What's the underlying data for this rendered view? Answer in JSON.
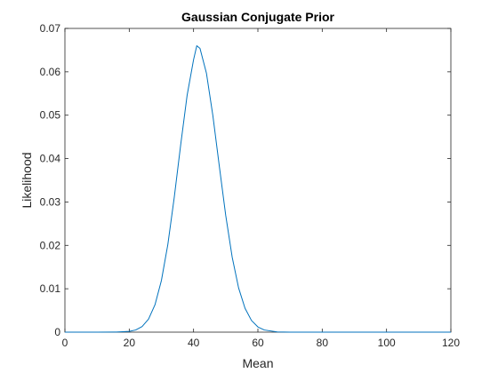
{
  "chart_data": {
    "type": "line",
    "title": "Gaussian Conjugate Prior",
    "xlabel": "Mean",
    "ylabel": "Likelihood",
    "xlim": [
      0,
      120
    ],
    "ylim": [
      0,
      0.07
    ],
    "xticks": [
      "0",
      "20",
      "40",
      "60",
      "80",
      "100",
      "120"
    ],
    "yticks": [
      "0",
      "0.01",
      "0.02",
      "0.03",
      "0.04",
      "0.05",
      "0.06",
      "0.07"
    ],
    "grid": false,
    "legend": "none",
    "series": [
      {
        "color": "#0072BD",
        "x": [
          0,
          10,
          16,
          20,
          22,
          24,
          26,
          28,
          30,
          32,
          34,
          36,
          38,
          40,
          41,
          42,
          44,
          46,
          48,
          50,
          52,
          54,
          56,
          58,
          60,
          62,
          66,
          70,
          80,
          100,
          120
        ],
        "y": [
          0,
          0,
          2e-05,
          0.00018,
          0.0005,
          0.0013,
          0.003,
          0.0063,
          0.0119,
          0.0202,
          0.0311,
          0.0432,
          0.0546,
          0.0628,
          0.066,
          0.0654,
          0.0597,
          0.0499,
          0.0383,
          0.0269,
          0.0173,
          0.0102,
          0.0055,
          0.0027,
          0.0012,
          0.0005,
          6e-05,
          0,
          0,
          0,
          0
        ]
      }
    ]
  }
}
